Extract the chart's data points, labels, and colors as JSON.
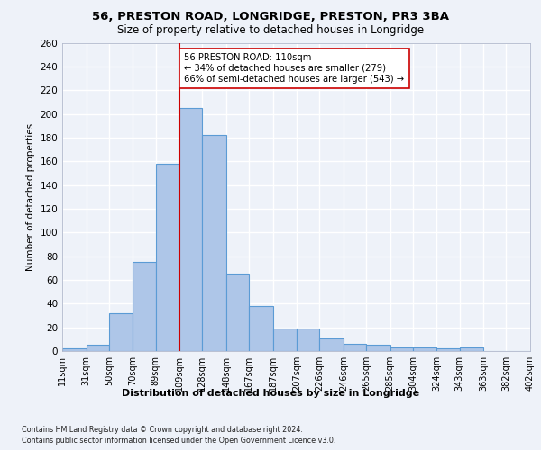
{
  "title1": "56, PRESTON ROAD, LONGRIDGE, PRESTON, PR3 3BA",
  "title2": "Size of property relative to detached houses in Longridge",
  "xlabel": "Distribution of detached houses by size in Longridge",
  "ylabel": "Number of detached properties",
  "bin_labels": [
    "11sqm",
    "31sqm",
    "50sqm",
    "70sqm",
    "89sqm",
    "109sqm",
    "128sqm",
    "148sqm",
    "167sqm",
    "187sqm",
    "207sqm",
    "226sqm",
    "246sqm",
    "265sqm",
    "285sqm",
    "304sqm",
    "324sqm",
    "343sqm",
    "363sqm",
    "382sqm",
    "402sqm"
  ],
  "bin_edges": [
    11,
    31,
    50,
    70,
    89,
    109,
    128,
    148,
    167,
    187,
    207,
    226,
    246,
    265,
    285,
    304,
    324,
    343,
    363,
    382,
    402
  ],
  "bar_values": [
    2,
    5,
    32,
    75,
    158,
    205,
    182,
    65,
    38,
    19,
    19,
    11,
    6,
    5,
    3,
    3,
    2,
    3,
    0,
    0
  ],
  "bar_color": "#aec6e8",
  "bar_edge_color": "#5b9bd5",
  "vline_x": 109,
  "vline_color": "#cc0000",
  "annotation_text": "56 PRESTON ROAD: 110sqm\n← 34% of detached houses are smaller (279)\n66% of semi-detached houses are larger (543) →",
  "annotation_box_color": "#ffffff",
  "annotation_box_edge": "#cc0000",
  "ylim": [
    0,
    260
  ],
  "yticks": [
    0,
    20,
    40,
    60,
    80,
    100,
    120,
    140,
    160,
    180,
    200,
    220,
    240,
    260
  ],
  "footer1": "Contains HM Land Registry data © Crown copyright and database right 2024.",
  "footer2": "Contains public sector information licensed under the Open Government Licence v3.0.",
  "bg_color": "#eef2f9",
  "plot_bg_color": "#eef2f9",
  "grid_color": "#ffffff"
}
